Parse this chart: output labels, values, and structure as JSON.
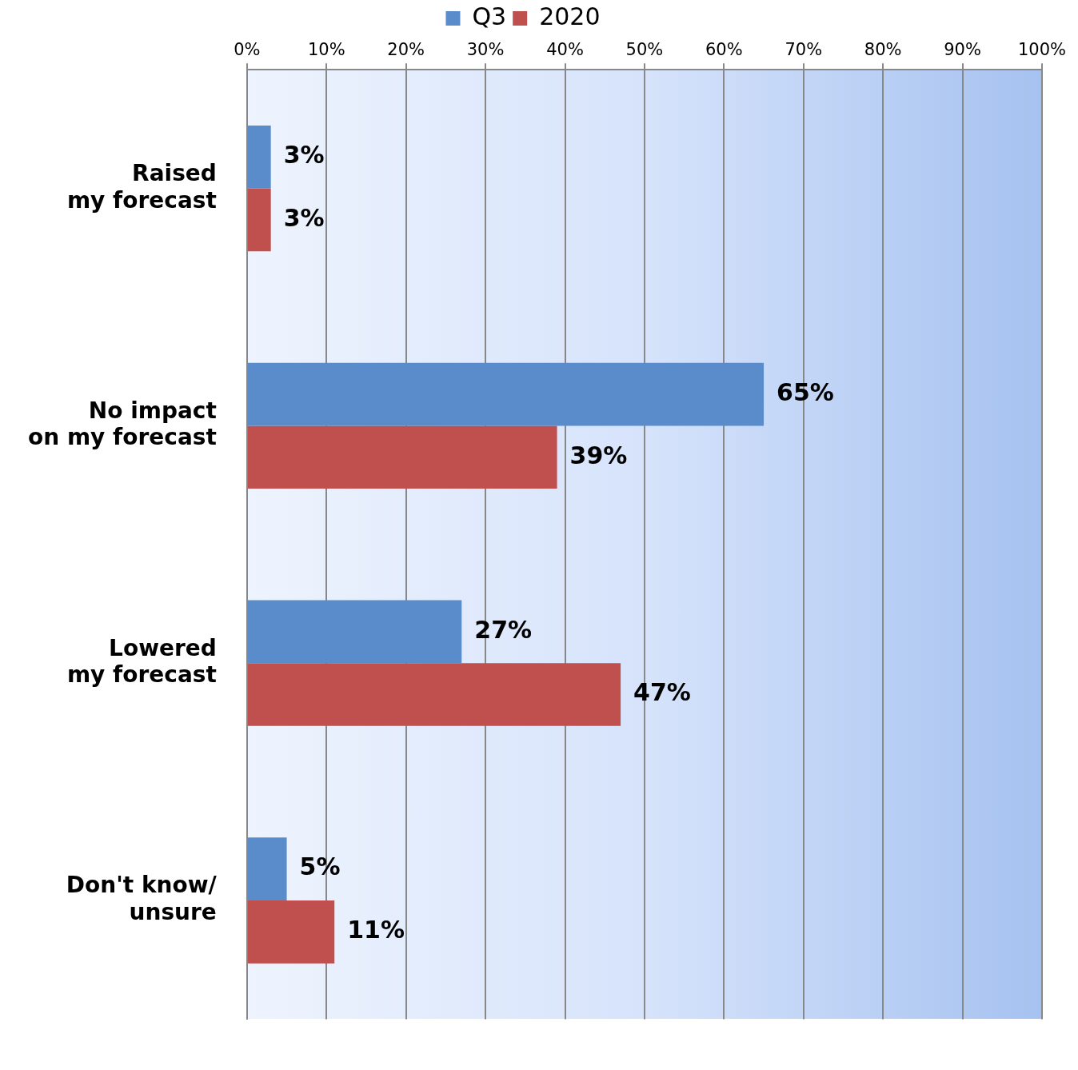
{
  "chart_data": {
    "type": "bar",
    "orientation": "horizontal",
    "categories": [
      "Raised\nmy forecast",
      "No impact\non my forecast",
      "Lowered\nmy forecast",
      "Don't know/\nunsure"
    ],
    "series": [
      {
        "name": "Q3",
        "color": "#5a8ccb",
        "values": [
          3,
          65,
          27,
          5
        ],
        "value_labels": [
          "3%",
          "65%",
          "27%",
          "5%"
        ]
      },
      {
        "name": "2020",
        "color": "#c0504d",
        "values": [
          3,
          39,
          47,
          11
        ],
        "value_labels": [
          "3%",
          "39%",
          "47%",
          "11%"
        ]
      }
    ],
    "xlim": [
      0,
      100
    ],
    "xticks": [
      {
        "value": 0,
        "label": "0%"
      },
      {
        "value": 10,
        "label": "10%"
      },
      {
        "value": 20,
        "label": "20%"
      },
      {
        "value": 30,
        "label": "30%"
      },
      {
        "value": 40,
        "label": "40%"
      },
      {
        "value": 50,
        "label": "50%"
      },
      {
        "value": 60,
        "label": "60%"
      },
      {
        "value": 70,
        "label": "70%"
      },
      {
        "value": 80,
        "label": "80%"
      },
      {
        "value": 90,
        "label": "90%"
      },
      {
        "value": 100,
        "label": "100%"
      }
    ],
    "grid": "x",
    "legend": "top"
  }
}
